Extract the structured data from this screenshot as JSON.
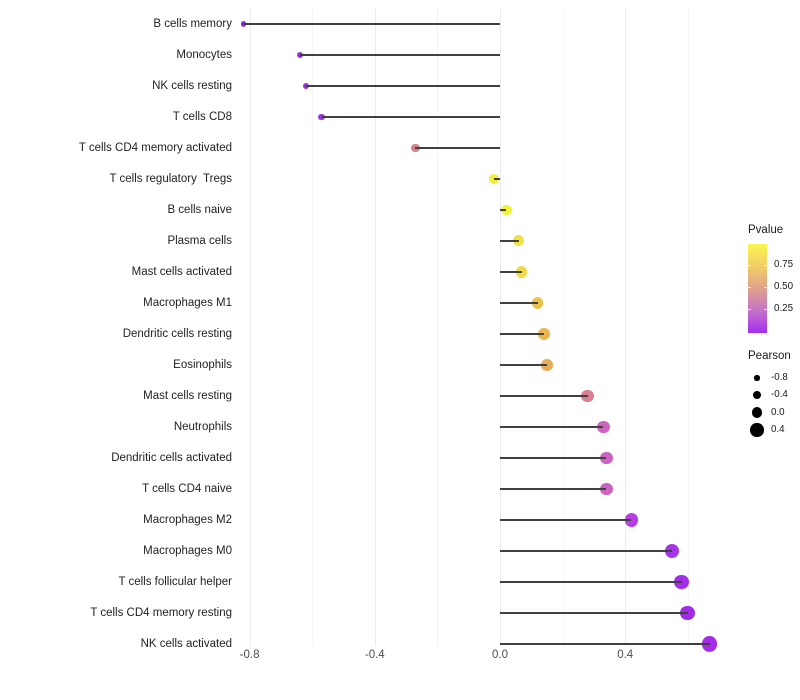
{
  "chart_data": {
    "type": "lollipop",
    "orientation": "horizontal",
    "title": "",
    "xlabel": "",
    "ylabel": "",
    "categories": [
      "B cells memory",
      "Monocytes",
      "NK cells resting",
      "T cells CD8",
      "T cells CD4 memory activated",
      "T cells regulatory  Tregs",
      "B cells naive",
      "Plasma cells",
      "Mast cells activated",
      "Macrophages M1",
      "Dendritic cells resting",
      "Eosinophils",
      "Mast cells resting",
      "Neutrophils",
      "Dendritic cells activated",
      "T cells CD4 naive",
      "Macrophages M2",
      "Macrophages M0",
      "T cells follicular helper",
      "T cells CD4 memory resting",
      "NK cells activated"
    ],
    "values": [
      -0.82,
      -0.64,
      -0.62,
      -0.57,
      -0.27,
      -0.02,
      0.02,
      0.06,
      0.07,
      0.12,
      0.14,
      0.15,
      0.28,
      0.33,
      0.34,
      0.34,
      0.42,
      0.55,
      0.58,
      0.6,
      0.67
    ],
    "point_colors": [
      "#9232dc",
      "#9a2fe0",
      "#9a2fe0",
      "#9e35e0",
      "#d5848c",
      "#f0ef3c",
      "#f3f338",
      "#f0e243",
      "#efdb47",
      "#ecc14b",
      "#eab74f",
      "#e9ad58",
      "#d7808f",
      "#ce64c0",
      "#cc62c4",
      "#cc62c4",
      "#b83ee4",
      "#a434e6",
      "#a22ee8",
      "#a02ce8",
      "#a52be8"
    ],
    "baseline": 0,
    "stem_color": "#404040",
    "x_ticks": [
      {
        "label": "-0.8",
        "value": -0.8
      },
      {
        "label": "-0.4",
        "value": -0.4
      },
      {
        "label": "0.0",
        "value": 0.0
      },
      {
        "label": "0.4",
        "value": 0.4
      }
    ],
    "grid_values": [
      -0.8,
      -0.6,
      -0.4,
      -0.2,
      0.0,
      0.2,
      0.4,
      0.6
    ],
    "xlim": [
      -0.88,
      0.72
    ],
    "grid": "vertical-only",
    "legend_position": "right",
    "legend_color": {
      "title": "Pvalue",
      "tick_labels": [
        "0.75",
        "0.50",
        "0.25"
      ],
      "gradient_stops": [
        "#fbf64e",
        "#f2cd68",
        "#dfa28c",
        "#c671c9",
        "#a42ff0"
      ]
    },
    "legend_size": {
      "title": "Pearson",
      "dot_color": "#000000",
      "entries": [
        {
          "label": "-0.8",
          "value": -0.8
        },
        {
          "label": "-0.4",
          "value": -0.4
        },
        {
          "label": "0.0",
          "value": 0.0
        },
        {
          "label": "0.4",
          "value": 0.4
        }
      ]
    }
  }
}
